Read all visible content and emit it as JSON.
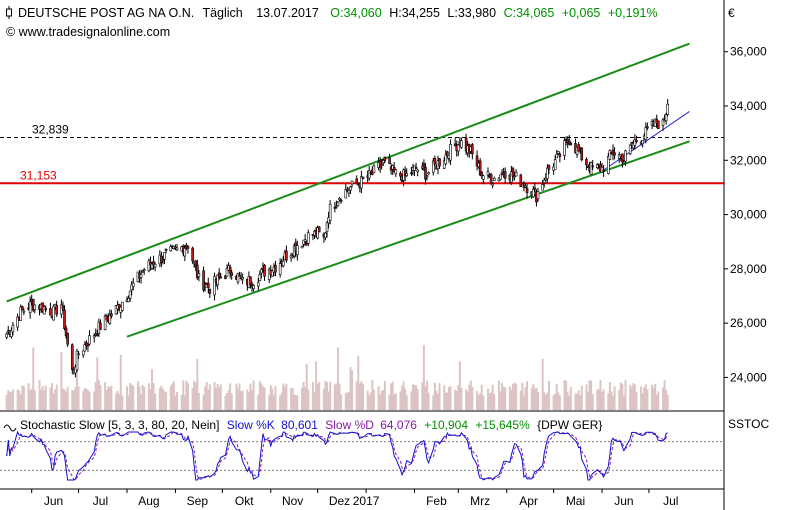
{
  "header": {
    "name": "DEUTSCHE POST AG NA O.N.",
    "interval": "Täglich",
    "date": "13.07.2017",
    "open": "O:34,060",
    "high": "H:34,255",
    "low": "L:33,980",
    "close": "C:34,065",
    "change": "+0,065",
    "change_pct": "+0,191%",
    "copyright": "© www.tradesignalonline.com"
  },
  "colors": {
    "up": "#009000",
    "channel": "#1a8c1a",
    "support": "#e00000",
    "trendline": "#2222cc",
    "stoch_k": "#1010d0",
    "stoch_d": "#8a1aa8",
    "volume": "#dcc4c4"
  },
  "chart_data": [
    {
      "type": "candlestick",
      "currency_label": "€",
      "ylim": [
        22800,
        36800
      ],
      "y_ticks": [
        "24,000",
        "26,000",
        "28,000",
        "30,000",
        "32,000",
        "34,000",
        "36,000"
      ],
      "x_ticks": [
        "Jun",
        "Jul",
        "Aug",
        "Sep",
        "Okt",
        "Nov",
        "Dez",
        "2017",
        "Feb",
        "Mrz",
        "Apr",
        "Mai",
        "Jun",
        "Jul"
      ],
      "x_tick_dates": [
        "2016-06",
        "2016-07",
        "2016-08",
        "2016-09",
        "2016-10",
        "2016-11",
        "2016-12",
        "2017-01",
        "2017-02",
        "2017-03",
        "2017-04",
        "2017-05",
        "2017-06",
        "2017-07"
      ],
      "close_path": [
        [
          "2016-05-16",
          25600
        ],
        [
          "2016-05-25",
          26400
        ],
        [
          "2016-06-01",
          26700
        ],
        [
          "2016-06-08",
          26600
        ],
        [
          "2016-06-15",
          26400
        ],
        [
          "2016-06-20",
          26700
        ],
        [
          "2016-06-24",
          25200
        ],
        [
          "2016-06-27",
          24200
        ],
        [
          "2016-07-01",
          24900
        ],
        [
          "2016-07-08",
          25400
        ],
        [
          "2016-07-15",
          25900
        ],
        [
          "2016-07-22",
          26300
        ],
        [
          "2016-07-29",
          26800
        ],
        [
          "2016-08-05",
          27400
        ],
        [
          "2016-08-12",
          28000
        ],
        [
          "2016-08-19",
          28300
        ],
        [
          "2016-08-26",
          28500
        ],
        [
          "2016-09-02",
          28700
        ],
        [
          "2016-09-09",
          28900
        ],
        [
          "2016-09-16",
          27600
        ],
        [
          "2016-09-23",
          27300
        ],
        [
          "2016-09-30",
          27700
        ],
        [
          "2016-10-07",
          28000
        ],
        [
          "2016-10-14",
          27500
        ],
        [
          "2016-10-21",
          27600
        ],
        [
          "2016-10-28",
          27900
        ],
        [
          "2016-11-04",
          28100
        ],
        [
          "2016-11-11",
          28500
        ],
        [
          "2016-11-18",
          28900
        ],
        [
          "2016-11-25",
          29200
        ],
        [
          "2016-12-01",
          29300
        ],
        [
          "2016-12-05",
          29100
        ],
        [
          "2016-12-08",
          30100
        ],
        [
          "2016-12-15",
          30700
        ],
        [
          "2016-12-22",
          31000
        ],
        [
          "2016-12-29",
          31200
        ],
        [
          "2017-01-05",
          31500
        ],
        [
          "2017-01-12",
          31900
        ],
        [
          "2017-01-19",
          31500
        ],
        [
          "2017-01-26",
          31400
        ],
        [
          "2017-02-02",
          31700
        ],
        [
          "2017-02-09",
          31500
        ],
        [
          "2017-02-16",
          31900
        ],
        [
          "2017-02-23",
          32300
        ],
        [
          "2017-03-02",
          32700
        ],
        [
          "2017-03-09",
          32300
        ],
        [
          "2017-03-16",
          31500
        ],
        [
          "2017-03-23",
          31300
        ],
        [
          "2017-03-30",
          31600
        ],
        [
          "2017-04-06",
          31400
        ],
        [
          "2017-04-13",
          31100
        ],
        [
          "2017-04-20",
          30700
        ],
        [
          "2017-04-27",
          31600
        ],
        [
          "2017-05-04",
          32100
        ],
        [
          "2017-05-11",
          32800
        ],
        [
          "2017-05-18",
          32200
        ],
        [
          "2017-05-25",
          31700
        ],
        [
          "2017-06-01",
          31700
        ],
        [
          "2017-06-08",
          32300
        ],
        [
          "2017-06-15",
          32100
        ],
        [
          "2017-06-22",
          32700
        ],
        [
          "2017-06-29",
          33000
        ],
        [
          "2017-07-06",
          33400
        ],
        [
          "2017-07-10",
          33300
        ],
        [
          "2017-07-13",
          34065
        ]
      ],
      "annotations": [
        {
          "label": "32,839",
          "value": 32839,
          "style": "dashed"
        },
        {
          "label": "31,153",
          "value": 31153,
          "style": "solid"
        }
      ],
      "channel_upper": {
        "from": [
          "2016-05-16",
          26800
        ],
        "to": [
          "2017-07-27",
          36300
        ]
      },
      "channel_lower": {
        "from": [
          "2016-08-01",
          25500
        ],
        "to": [
          "2017-07-27",
          32700
        ]
      },
      "trendline": {
        "from": [
          "2017-06-01",
          31600
        ],
        "to": [
          "2017-07-27",
          33800
        ]
      }
    },
    {
      "type": "line",
      "title": "Stochastic Slow [5, 3, 3, 80, 20, Nein]",
      "series": [
        {
          "name": "Slow %K",
          "value": "80,601"
        },
        {
          "name": "Slow %D",
          "value": "64,076"
        }
      ],
      "change": "+10,904",
      "change_pct": "+15,645%",
      "symbol": "{DPW GER}",
      "panel_label": "SSTOC",
      "levels": [
        80,
        20
      ],
      "ylim": [
        0,
        100
      ]
    }
  ]
}
